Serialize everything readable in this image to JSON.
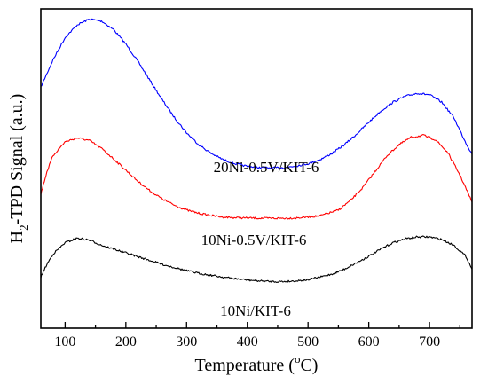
{
  "chart_data": {
    "type": "line",
    "title": "",
    "xlabel": {
      "prefix": "Temperature (",
      "degree": "o",
      "suffix": "C)"
    },
    "ylabel": {
      "main": "H",
      "subscript": "2",
      "rest": "-TPD Signal (a.u.)"
    },
    "xlim": [
      60,
      770
    ],
    "x_ticks": [
      100,
      200,
      300,
      400,
      500,
      600,
      700
    ],
    "x_tick_labels": [
      "100",
      "200",
      "300",
      "400",
      "500",
      "600",
      "700"
    ],
    "y_ticks_shown": false,
    "grid": false,
    "series": [
      {
        "name": "20Ni-0.5V/KIT-6",
        "color": "#0000ff",
        "points": [
          [
            60,
            0.755
          ],
          [
            80,
            0.84
          ],
          [
            100,
            0.91
          ],
          [
            120,
            0.95
          ],
          [
            140,
            0.968
          ],
          [
            160,
            0.962
          ],
          [
            180,
            0.935
          ],
          [
            200,
            0.89
          ],
          [
            220,
            0.835
          ],
          [
            240,
            0.775
          ],
          [
            260,
            0.715
          ],
          [
            280,
            0.66
          ],
          [
            300,
            0.612
          ],
          [
            320,
            0.575
          ],
          [
            340,
            0.548
          ],
          [
            360,
            0.528
          ],
          [
            380,
            0.515
          ],
          [
            400,
            0.507
          ],
          [
            420,
            0.503
          ],
          [
            440,
            0.502
          ],
          [
            460,
            0.503
          ],
          [
            480,
            0.508
          ],
          [
            500,
            0.515
          ],
          [
            520,
            0.528
          ],
          [
            540,
            0.548
          ],
          [
            560,
            0.575
          ],
          [
            580,
            0.608
          ],
          [
            600,
            0.645
          ],
          [
            620,
            0.68
          ],
          [
            640,
            0.708
          ],
          [
            660,
            0.726
          ],
          [
            680,
            0.736
          ],
          [
            700,
            0.731
          ],
          [
            720,
            0.708
          ],
          [
            740,
            0.66
          ],
          [
            760,
            0.58
          ],
          [
            770,
            0.545
          ]
        ]
      },
      {
        "name": "10Ni-0.5V/KIT-6",
        "color": "#ff0000",
        "points": [
          [
            60,
            0.42
          ],
          [
            70,
            0.49
          ],
          [
            80,
            0.54
          ],
          [
            100,
            0.584
          ],
          [
            120,
            0.596
          ],
          [
            140,
            0.588
          ],
          [
            160,
            0.563
          ],
          [
            180,
            0.53
          ],
          [
            200,
            0.495
          ],
          [
            220,
            0.46
          ],
          [
            240,
            0.43
          ],
          [
            260,
            0.405
          ],
          [
            280,
            0.385
          ],
          [
            300,
            0.37
          ],
          [
            320,
            0.36
          ],
          [
            340,
            0.353
          ],
          [
            360,
            0.348
          ],
          [
            380,
            0.346
          ],
          [
            400,
            0.345
          ],
          [
            440,
            0.344
          ],
          [
            480,
            0.345
          ],
          [
            520,
            0.352
          ],
          [
            550,
            0.37
          ],
          [
            570,
            0.4
          ],
          [
            590,
            0.44
          ],
          [
            610,
            0.49
          ],
          [
            630,
            0.54
          ],
          [
            650,
            0.575
          ],
          [
            670,
            0.598
          ],
          [
            690,
            0.604
          ],
          [
            710,
            0.59
          ],
          [
            730,
            0.55
          ],
          [
            750,
            0.48
          ],
          [
            770,
            0.395
          ]
        ]
      },
      {
        "name": "10Ni/KIT-6",
        "color": "#000000",
        "points": [
          [
            60,
            0.16
          ],
          [
            70,
            0.2
          ],
          [
            80,
            0.232
          ],
          [
            100,
            0.268
          ],
          [
            120,
            0.282
          ],
          [
            140,
            0.276
          ],
          [
            160,
            0.26
          ],
          [
            180,
            0.248
          ],
          [
            200,
            0.236
          ],
          [
            220,
            0.224
          ],
          [
            240,
            0.212
          ],
          [
            260,
            0.2
          ],
          [
            280,
            0.19
          ],
          [
            300,
            0.18
          ],
          [
            320,
            0.172
          ],
          [
            340,
            0.166
          ],
          [
            360,
            0.16
          ],
          [
            380,
            0.155
          ],
          [
            400,
            0.151
          ],
          [
            420,
            0.148
          ],
          [
            440,
            0.146
          ],
          [
            460,
            0.146
          ],
          [
            480,
            0.148
          ],
          [
            500,
            0.152
          ],
          [
            520,
            0.16
          ],
          [
            540,
            0.17
          ],
          [
            560,
            0.185
          ],
          [
            580,
            0.205
          ],
          [
            600,
            0.225
          ],
          [
            620,
            0.248
          ],
          [
            640,
            0.268
          ],
          [
            660,
            0.28
          ],
          [
            680,
            0.286
          ],
          [
            700,
            0.286
          ],
          [
            720,
            0.278
          ],
          [
            740,
            0.26
          ],
          [
            760,
            0.225
          ],
          [
            770,
            0.185
          ]
        ]
      }
    ]
  }
}
